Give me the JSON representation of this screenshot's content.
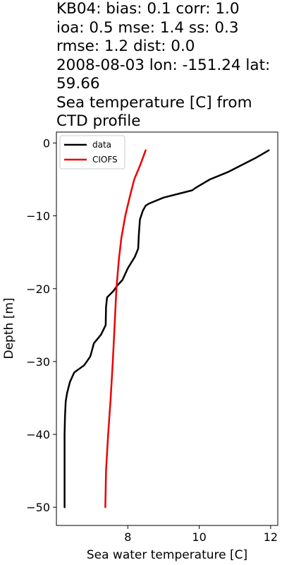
{
  "title_lines": [
    "KB04: bias: 0.1  corr: 1.0",
    "ioa: 0.5  mse: 1.4  ss: 0.3",
    "rmse: 1.2  dist: 0.0",
    "2008-08-03 lon: -151.24 lat:",
    "59.66",
    "Sea temperature [C] from",
    "CTD profile"
  ],
  "chart_data": {
    "type": "line",
    "xlabel": "Sea water temperature [C]",
    "ylabel": "Depth [m]",
    "xlim": [
      6.0,
      12.2
    ],
    "ylim": [
      -52.5,
      1.5
    ],
    "xticks": [
      8,
      10,
      12
    ],
    "yticks": [
      0,
      -10,
      -20,
      -30,
      -40,
      -50
    ],
    "xtick_labels": [
      "8",
      "10",
      "12"
    ],
    "ytick_labels": [
      "0",
      "−10",
      "−20",
      "−30",
      "−40",
      "−50"
    ],
    "legend_position": "upper left",
    "grid": false,
    "series": [
      {
        "name": "data",
        "color": "#000000",
        "points": [
          [
            11.95,
            -1
          ],
          [
            11.6,
            -2
          ],
          [
            11.2,
            -3
          ],
          [
            10.8,
            -4
          ],
          [
            10.3,
            -5
          ],
          [
            9.95,
            -6
          ],
          [
            9.8,
            -6.5
          ],
          [
            9.0,
            -7.5
          ],
          [
            8.6,
            -8.3
          ],
          [
            8.5,
            -8.6
          ],
          [
            8.42,
            -9.3
          ],
          [
            8.34,
            -10.5
          ],
          [
            8.31,
            -12.5
          ],
          [
            8.29,
            -14.5
          ],
          [
            8.2,
            -15.6
          ],
          [
            8.0,
            -17.2
          ],
          [
            7.85,
            -18.8
          ],
          [
            7.7,
            -19.6
          ],
          [
            7.6,
            -20.3
          ],
          [
            7.42,
            -21.2
          ],
          [
            7.39,
            -22.5
          ],
          [
            7.38,
            -25
          ],
          [
            7.25,
            -26.3
          ],
          [
            7.05,
            -27.5
          ],
          [
            6.95,
            -29.3
          ],
          [
            6.78,
            -30.5
          ],
          [
            6.5,
            -31.5
          ],
          [
            6.38,
            -32.8
          ],
          [
            6.3,
            -34.3
          ],
          [
            6.26,
            -35.5
          ],
          [
            6.24,
            -37.5
          ],
          [
            6.23,
            -40
          ],
          [
            6.23,
            -45
          ],
          [
            6.23,
            -50
          ]
        ]
      },
      {
        "name": "CIOFS",
        "color": "#ee0000",
        "points": [
          [
            8.5,
            -1
          ],
          [
            8.35,
            -3
          ],
          [
            8.18,
            -5
          ],
          [
            8.05,
            -7.5
          ],
          [
            7.93,
            -10
          ],
          [
            7.82,
            -13
          ],
          [
            7.75,
            -16
          ],
          [
            7.68,
            -20
          ],
          [
            7.63,
            -25
          ],
          [
            7.58,
            -30
          ],
          [
            7.52,
            -35
          ],
          [
            7.45,
            -40
          ],
          [
            7.39,
            -45
          ],
          [
            7.37,
            -50
          ]
        ]
      }
    ]
  }
}
